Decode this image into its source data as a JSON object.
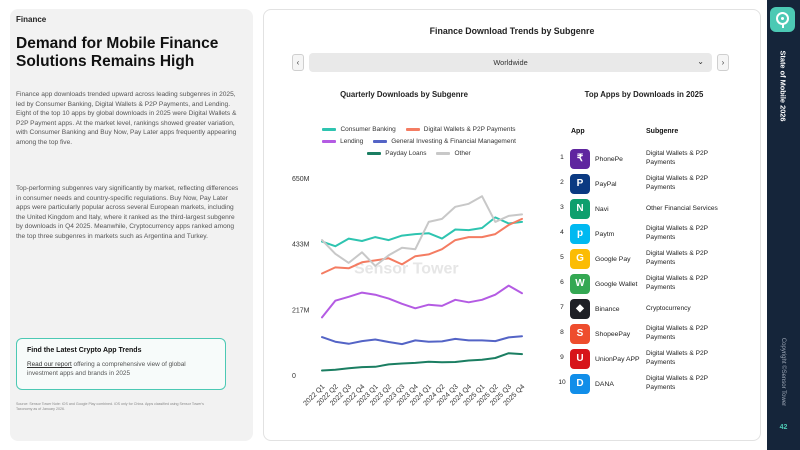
{
  "left": {
    "section": "Finance",
    "headline": "Demand for Mobile Finance Solutions Remains High",
    "paragraph1": "Finance app downloads trended upward across leading subgenres in 2025, led by Consumer Banking, Digital Wallets & P2P Payments, and Lending. Eight of the top 10 apps by global downloads in 2025 were Digital Wallets & P2P Payment apps. At the market level, rankings showed greater variation, with Consumer Banking and Buy Now, Pay Later apps frequently appearing among the top five.",
    "paragraph2": "Top-performing subgenres vary significantly by market, reflecting differences in consumer needs and country-specific regulations. Buy Now, Pay Later apps were particularly popular across several European markets, including the United Kingdom and Italy, where it ranked as the third-largest subgenre by downloads in Q4 2025. Meanwhile, Cryptocurrency apps ranked among the top three subgenres in markets such as Argentina and Turkey.",
    "cta": {
      "title": "Find the Latest Crypto App Trends",
      "link_text": "Read our report",
      "text": " offering a comprehensive view of global investment apps and brands in 2025"
    },
    "footnote": "Source: Sensor Tower\nNote: iOS and Google Play combined. iOS only for China. Apps classified using Sensor Tower's Taxonomy as of January 2026."
  },
  "main": {
    "title": "Finance Download Trends by Subgenre",
    "prev_label": "‹",
    "next_label": "›",
    "region": "Worldwide",
    "chart_title": "Quarterly Downloads by Subgenre",
    "apps_title": "Top Apps by Downloads in 2025",
    "col_app": "App",
    "col_subgenre": "Subgenre",
    "watermark": "Sensor Tower"
  },
  "chart_data": {
    "type": "line",
    "title": "Quarterly Downloads by Subgenre",
    "x": [
      "2022 Q1",
      "2022 Q2",
      "2022 Q3",
      "2022 Q4",
      "2023 Q1",
      "2023 Q2",
      "2023 Q3",
      "2023 Q4",
      "2024 Q1",
      "2024 Q2",
      "2024 Q3",
      "2024 Q4",
      "2025 Q1",
      "2025 Q2",
      "2025 Q3",
      "2025 Q4"
    ],
    "y_ticks": [
      "0",
      "217M",
      "433M",
      "650M"
    ],
    "ylim": [
      0,
      650
    ],
    "legend_position": "top",
    "series": [
      {
        "name": "Consumer Banking",
        "color": "#2ec4b0",
        "values": [
          440,
          425,
          450,
          442,
          455,
          445,
          460,
          465,
          468,
          450,
          480,
          478,
          485,
          520,
          500,
          505
        ]
      },
      {
        "name": "Digital Wallets & P2P Payments",
        "color": "#f47c62",
        "values": [
          335,
          355,
          352,
          372,
          378,
          385,
          365,
          392,
          398,
          415,
          445,
          455,
          455,
          465,
          495,
          515
        ]
      },
      {
        "name": "Lending",
        "color": "#b45be3",
        "values": [
          190,
          245,
          258,
          272,
          265,
          252,
          235,
          220,
          232,
          228,
          248,
          240,
          248,
          265,
          295,
          270
        ]
      },
      {
        "name": "General Investing & Financial Management",
        "color": "#5464c6",
        "values": [
          125,
          110,
          103,
          112,
          117,
          109,
          102,
          114,
          110,
          111,
          119,
          114,
          114,
          112,
          124,
          128
        ]
      },
      {
        "name": "Payday Loans",
        "color": "#1b7e62",
        "values": [
          15,
          17,
          22,
          26,
          27,
          35,
          38,
          40,
          44,
          42,
          43,
          48,
          50,
          56,
          72,
          69
        ]
      },
      {
        "name": "Other",
        "color": "#c8c8c8",
        "values": [
          445,
          400,
          370,
          405,
          360,
          395,
          420,
          415,
          505,
          515,
          555,
          565,
          590,
          505,
          525,
          530
        ]
      }
    ]
  },
  "top_apps": [
    {
      "rank": "1",
      "name": "PhonePe",
      "subgenre": "Digital Wallets & P2P Payments",
      "icon": "phonepe-icon",
      "color": "#5f259f",
      "glyph": "₹"
    },
    {
      "rank": "2",
      "name": "PayPal",
      "subgenre": "Digital Wallets & P2P Payments",
      "icon": "paypal-icon",
      "color": "#0b3a82",
      "glyph": "P"
    },
    {
      "rank": "3",
      "name": "Navi",
      "subgenre": "Other Financial Services",
      "icon": "navi-icon",
      "color": "#0e9f6e",
      "glyph": "N"
    },
    {
      "rank": "4",
      "name": "Paytm",
      "subgenre": "Digital Wallets & P2P Payments",
      "icon": "paytm-icon",
      "color": "#00b9f1",
      "glyph": "p"
    },
    {
      "rank": "5",
      "name": "Google Pay",
      "subgenre": "Digital Wallets & P2P Payments",
      "icon": "google-pay-icon",
      "color": "#fbbc04",
      "glyph": "G"
    },
    {
      "rank": "6",
      "name": "Google Wallet",
      "subgenre": "Digital Wallets & P2P Payments",
      "icon": "google-wallet-icon",
      "color": "#34a853",
      "glyph": "W"
    },
    {
      "rank": "7",
      "name": "Binance",
      "subgenre": "Cryptocurrency",
      "icon": "binance-icon",
      "color": "#1e2026",
      "glyph": "◆"
    },
    {
      "rank": "8",
      "name": "ShopeePay",
      "subgenre": "Digital Wallets & P2P Payments",
      "icon": "shopeepay-icon",
      "color": "#ee4d2d",
      "glyph": "S"
    },
    {
      "rank": "9",
      "name": "UnionPay APP",
      "subgenre": "Digital Wallets & P2P Payments",
      "icon": "unionpay-icon",
      "color": "#d7141a",
      "glyph": "U"
    },
    {
      "rank": "10",
      "name": "DANA",
      "subgenre": "Digital Wallets & P2P Payments",
      "icon": "dana-icon",
      "color": "#118ee9",
      "glyph": "D"
    }
  ],
  "sidebar": {
    "logo_icon": "sensor-tower-logo-icon",
    "title": "State of Mobile 2026",
    "copyright": "Copyright ©Sensor Tower",
    "page": "42"
  }
}
